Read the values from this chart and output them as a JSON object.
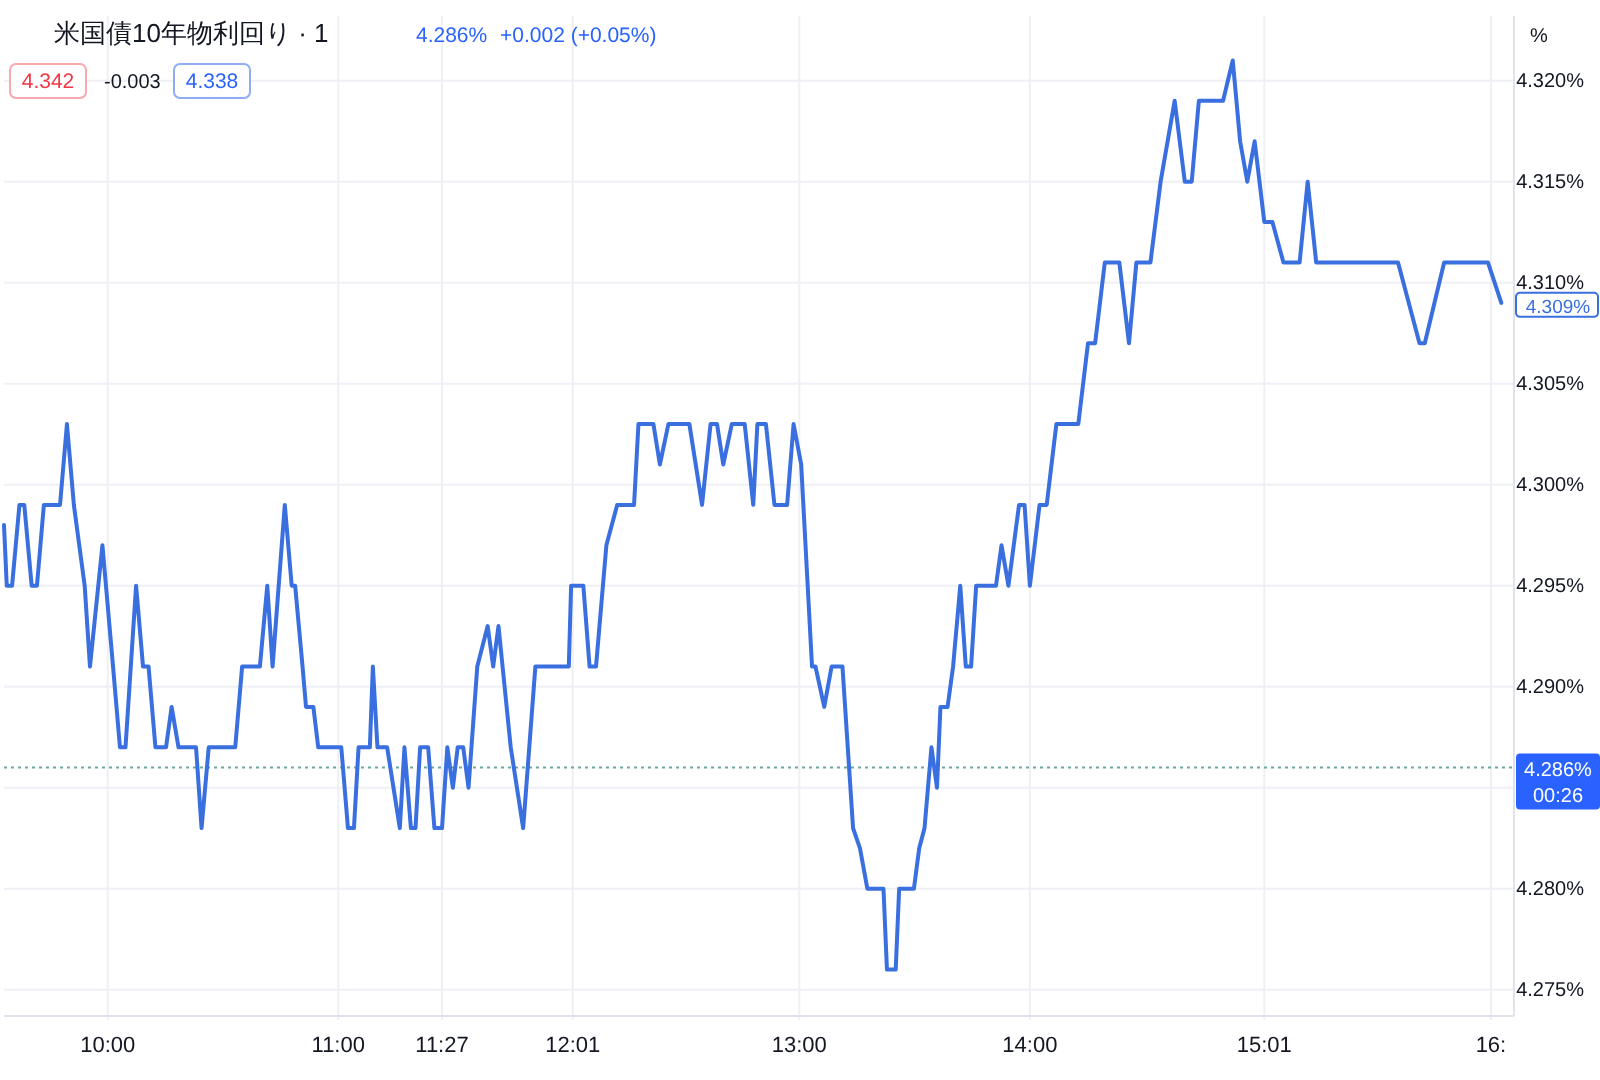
{
  "chart_data": {
    "type": "line",
    "title": "米国債10年物利回り · 1",
    "annotations": [
      "4.286%",
      "+0.002 (+0.05%)",
      "4.342",
      "-0.003",
      "4.338",
      "%",
      "4.309%",
      "00:26"
    ],
    "x": [
      9.55,
      9.562,
      9.585,
      9.617,
      9.638,
      9.67,
      9.693,
      9.723,
      9.793,
      9.823,
      9.853,
      9.9,
      9.923,
      9.977,
      10.023,
      10.053,
      10.077,
      10.123,
      10.153,
      10.177,
      10.207,
      10.253,
      10.277,
      10.307,
      10.383,
      10.407,
      10.438,
      10.553,
      10.583,
      10.66,
      10.692,
      10.715,
      10.768,
      10.798,
      10.813,
      10.845,
      10.86,
      10.892,
      10.913,
      11.013,
      11.042,
      11.068,
      11.088,
      11.137,
      11.15,
      11.17,
      11.212,
      11.267,
      11.287,
      11.315,
      11.335,
      11.355,
      11.39,
      11.417,
      11.45,
      11.473,
      11.497,
      11.518,
      11.542,
      11.565,
      11.603,
      11.648,
      11.672,
      11.695,
      11.748,
      11.802,
      11.855,
      12.0,
      12.01,
      12.063,
      12.09,
      12.118,
      12.163,
      12.21,
      12.283,
      12.302,
      12.367,
      12.395,
      12.432,
      12.523,
      12.578,
      12.615,
      12.643,
      12.67,
      12.707,
      12.763,
      12.8,
      12.818,
      12.855,
      12.892,
      12.947,
      12.975,
      13.008,
      13.055,
      13.07,
      13.108,
      13.14,
      13.187,
      13.233,
      13.263,
      13.295,
      13.365,
      13.38,
      13.418,
      13.433,
      13.497,
      13.52,
      13.543,
      13.573,
      13.597,
      13.612,
      13.643,
      13.667,
      13.698,
      13.722,
      13.745,
      13.767,
      13.853,
      13.877,
      13.907,
      13.953,
      13.977,
      14.0,
      14.042,
      14.073,
      14.115,
      14.21,
      14.252,
      14.283,
      14.325,
      14.388,
      14.43,
      14.462,
      14.523,
      14.567,
      14.628,
      14.672,
      14.702,
      14.733,
      14.838,
      14.88,
      14.912,
      14.943,
      14.975,
      15.017,
      15.052,
      15.1,
      15.17,
      15.205,
      15.242,
      15.597,
      15.69,
      15.713,
      15.797,
      15.987,
      16.045
    ],
    "series": [
      {
        "color": "#3a6fe0",
        "values": [
          4.298,
          4.295,
          4.295,
          4.299,
          4.299,
          4.295,
          4.295,
          4.299,
          4.299,
          4.303,
          4.299,
          4.295,
          4.291,
          4.297,
          4.291,
          4.287,
          4.287,
          4.295,
          4.291,
          4.291,
          4.287,
          4.287,
          4.289,
          4.287,
          4.287,
          4.283,
          4.287,
          4.287,
          4.291,
          4.291,
          4.295,
          4.291,
          4.299,
          4.295,
          4.295,
          4.291,
          4.289,
          4.289,
          4.287,
          4.287,
          4.283,
          4.283,
          4.287,
          4.287,
          4.291,
          4.287,
          4.287,
          4.283,
          4.287,
          4.283,
          4.283,
          4.287,
          4.287,
          4.283,
          4.283,
          4.287,
          4.285,
          4.287,
          4.287,
          4.285,
          4.291,
          4.293,
          4.291,
          4.293,
          4.287,
          4.283,
          4.291,
          4.291,
          4.295,
          4.295,
          4.291,
          4.291,
          4.297,
          4.299,
          4.299,
          4.303,
          4.303,
          4.301,
          4.303,
          4.303,
          4.299,
          4.303,
          4.303,
          4.301,
          4.303,
          4.303,
          4.299,
          4.303,
          4.303,
          4.299,
          4.299,
          4.303,
          4.301,
          4.291,
          4.291,
          4.289,
          4.291,
          4.291,
          4.283,
          4.282,
          4.28,
          4.28,
          4.276,
          4.276,
          4.28,
          4.28,
          4.282,
          4.283,
          4.287,
          4.285,
          4.289,
          4.289,
          4.291,
          4.295,
          4.291,
          4.291,
          4.295,
          4.295,
          4.297,
          4.295,
          4.299,
          4.299,
          4.295,
          4.299,
          4.299,
          4.303,
          4.303,
          4.307,
          4.307,
          4.311,
          4.311,
          4.307,
          4.311,
          4.311,
          4.315,
          4.319,
          4.315,
          4.315,
          4.319,
          4.319,
          4.321,
          4.317,
          4.315,
          4.317,
          4.313,
          4.313,
          4.311,
          4.311,
          4.315,
          4.311,
          4.311,
          4.307,
          4.307,
          4.311,
          4.311,
          4.309
        ]
      }
    ],
    "xlim": [
      9.55,
      16.1
    ],
    "ylim": [
      4.2737,
      4.3232
    ],
    "xticks": [
      {
        "value": 10,
        "label": "10:00"
      },
      {
        "value": 11,
        "label": "11:00"
      },
      {
        "value": 11.45,
        "label": "11:27"
      },
      {
        "value": 12.017,
        "label": "12:01"
      },
      {
        "value": 13,
        "label": "13:00"
      },
      {
        "value": 14,
        "label": "14:00"
      },
      {
        "value": 15.017,
        "label": "15:01"
      },
      {
        "value": 16,
        "label": "16:"
      }
    ],
    "yticks": [
      {
        "value": 4.275,
        "label": "4.275%"
      },
      {
        "value": 4.28,
        "label": "4.280%"
      },
      {
        "value": 4.285,
        "label": null
      },
      {
        "value": 4.29,
        "label": "4.290%"
      },
      {
        "value": 4.295,
        "label": "4.295%"
      },
      {
        "value": 4.3,
        "label": "4.300%"
      },
      {
        "value": 4.305,
        "label": "4.305%"
      },
      {
        "value": 4.31,
        "label": "4.310%"
      },
      {
        "value": 4.315,
        "label": "4.315%"
      },
      {
        "value": 4.32,
        "label": "4.320%"
      }
    ],
    "grid": true,
    "ref_lines": [
      {
        "axis": "y",
        "value": 4.286,
        "label": "4.286%",
        "color": "#6aa8a0",
        "line_style": "dotted"
      }
    ]
  }
}
